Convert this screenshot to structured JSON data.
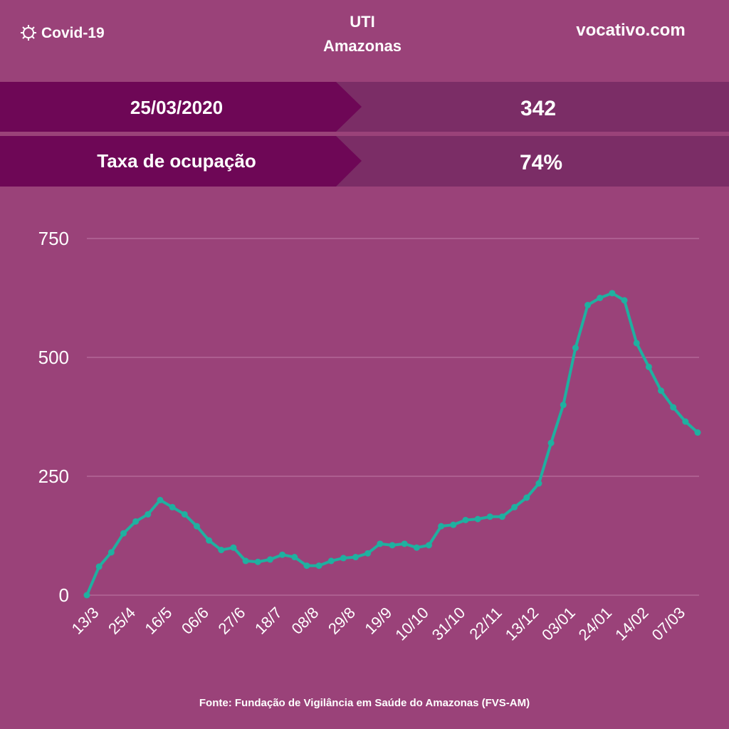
{
  "header": {
    "brand": "Covid-19",
    "title": "UTI",
    "subtitle": "Amazonas",
    "site": "vocativo.com"
  },
  "table": {
    "rows": [
      [
        "25/03/2020",
        "342"
      ],
      [
        "Taxa de ocupação",
        "74%"
      ]
    ]
  },
  "chart_data": {
    "type": "line",
    "categories": [
      "13/3",
      null,
      null,
      "25/4",
      null,
      null,
      "16/5",
      null,
      null,
      "06/6",
      null,
      null,
      "27/6",
      null,
      null,
      "18/7",
      null,
      null,
      "08/8",
      null,
      null,
      "29/8",
      null,
      null,
      "19/9",
      null,
      null,
      "10/10",
      null,
      null,
      "31/10",
      null,
      null,
      "22/11",
      null,
      null,
      "13/12",
      null,
      null,
      "03/01",
      null,
      null,
      "24/01",
      null,
      null,
      "14/02",
      null,
      null,
      "07/03",
      null,
      null
    ],
    "series": [
      {
        "color": "#1fb0a0",
        "values": [
          0,
          60,
          90,
          130,
          155,
          170,
          200,
          185,
          170,
          145,
          115,
          95,
          100,
          72,
          70,
          75,
          85,
          80,
          62,
          62,
          72,
          78,
          80,
          88,
          108,
          105,
          108,
          100,
          105,
          145,
          148,
          158,
          160,
          165,
          165,
          185,
          205,
          235,
          320,
          400,
          520,
          610,
          625,
          635,
          620,
          530,
          480,
          430,
          395,
          365,
          342
        ]
      }
    ],
    "ylim": [
      0,
      750
    ],
    "yticks": [
      0,
      250,
      500,
      750
    ],
    "grid": true
  },
  "source": "Fonte: Fundação de Vigilância em Saúde do Amazonas (FVS-AM)"
}
